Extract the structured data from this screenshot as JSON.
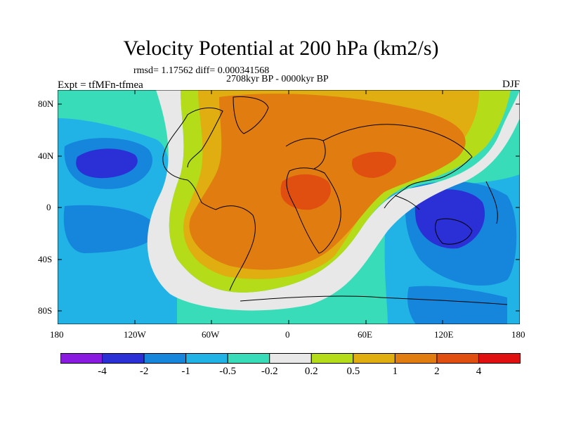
{
  "figure": {
    "title": "Velocity Potential at 200 hPa (km2/s)",
    "stats": "rmsd= 1.17562 diff= 0.000341568",
    "period": "2708kyr BP - 0000kyr BP",
    "experiment": "Expt = tfMFn-tfmea",
    "season": "DJF"
  },
  "axes": {
    "lat_ticks": [
      "80N",
      "40N",
      "0",
      "40S",
      "80S"
    ],
    "lon_ticks": [
      "180",
      "120W",
      "60W",
      "0",
      "60E",
      "120E",
      "180"
    ]
  },
  "colorbar": {
    "labels": [
      "-4",
      "-2",
      "-1",
      "-0.5",
      "-0.2",
      "0.2",
      "0.5",
      "1",
      "2",
      "4"
    ],
    "colors": [
      "#8a1ae0",
      "#2b2fd6",
      "#1685dc",
      "#21b3e6",
      "#38dcb8",
      "#e8e8e8",
      "#b4dc18",
      "#e0ae10",
      "#e07c10",
      "#e04e10",
      "#e01010"
    ]
  }
}
